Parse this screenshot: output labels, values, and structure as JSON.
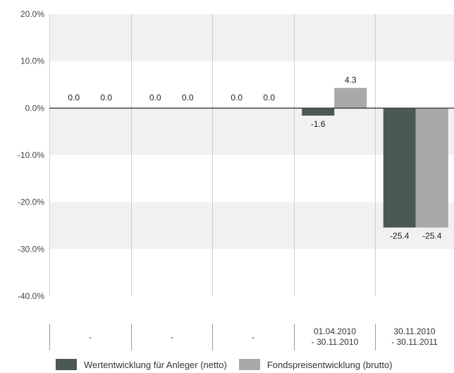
{
  "chart_data": {
    "type": "bar",
    "categories": [
      "-",
      "-",
      "-",
      "01.04.2010\n- 30.11.2010",
      "30.11.2010\n- 30.11.2011"
    ],
    "series": [
      {
        "name": "Wertentwicklung für Anleger (netto)",
        "color": "#4a5856",
        "values": [
          0.0,
          0.0,
          0.0,
          -1.6,
          -25.4
        ]
      },
      {
        "name": "Fondspreisentwicklung (brutto)",
        "color": "#a9a8aa",
        "values": [
          0.0,
          0.0,
          0.0,
          4.3,
          -25.4
        ]
      }
    ],
    "data_labels": [
      [
        "0.0",
        "0.0",
        "0.0",
        "-1.6",
        "-25.4"
      ],
      [
        "0.0",
        "0.0",
        "0.0",
        "4.3",
        "-25.4"
      ]
    ],
    "y_ticks": [
      "20.0%",
      "10.0%",
      "0.0%",
      "-10.0%",
      "-20.0%",
      "-30.0%",
      "-40.0%"
    ],
    "ylim": [
      -40,
      20
    ],
    "grid": true,
    "legend_position": "bottom"
  }
}
